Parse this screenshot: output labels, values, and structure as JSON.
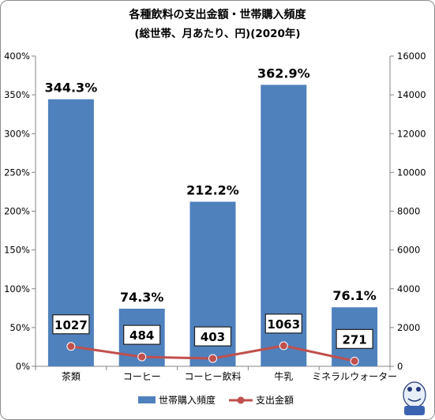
{
  "chart_data": {
    "type": "bar",
    "title": "各種飲料の支出金額・世帯購入頻度",
    "subtitle": "(総世帯、月あたり、円)(2020年)",
    "categories": [
      "茶類",
      "コーヒー",
      "コーヒー飲料",
      "牛乳",
      "ミネラルウォーター"
    ],
    "series": [
      {
        "name": "世帯購入頻度",
        "kind": "bar",
        "axis": "left",
        "values": [
          344.3,
          74.3,
          212.2,
          362.9,
          76.1
        ],
        "labels": [
          "344.3%",
          "74.3%",
          "212.2%",
          "362.9%",
          "76.1%"
        ],
        "color": "#4f81bd"
      },
      {
        "name": "支出金額",
        "kind": "line",
        "axis": "right",
        "values": [
          1027,
          484,
          403,
          1063,
          271
        ],
        "labels": [
          "1027",
          "484",
          "403",
          "1063",
          "271"
        ],
        "color": "#c0504d"
      }
    ],
    "y_left": {
      "ticks": [
        "0%",
        "50%",
        "100%",
        "150%",
        "200%",
        "250%",
        "300%",
        "350%",
        "400%"
      ],
      "ylim": [
        0,
        400
      ]
    },
    "y_right": {
      "ticks": [
        "0",
        "2000",
        "4000",
        "6000",
        "8000",
        "10000",
        "12000",
        "14000",
        "16000"
      ],
      "ylim": [
        0,
        16000
      ]
    },
    "grid": false,
    "legend_position": "bottom"
  }
}
